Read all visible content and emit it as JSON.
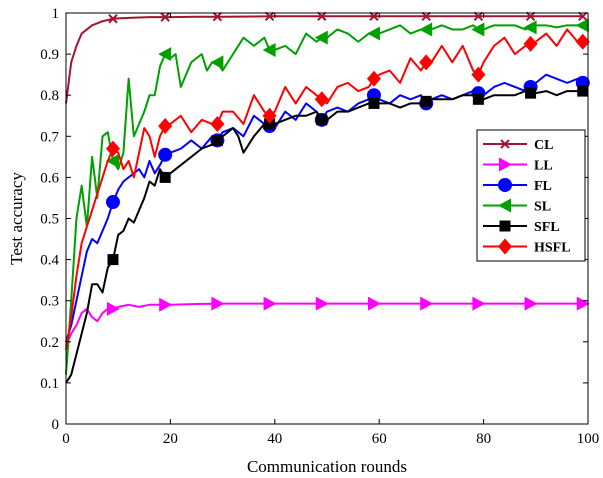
{
  "chart_data": {
    "type": "line",
    "xlabel": "Communication rounds",
    "ylabel": "Test accuracy",
    "xlim": [
      0,
      100
    ],
    "ylim": [
      0,
      1
    ],
    "xticks": [
      0,
      20,
      40,
      60,
      80,
      100
    ],
    "yticks": [
      0,
      0.1,
      0.2,
      0.3,
      0.4,
      0.5,
      0.6,
      0.7,
      0.8,
      0.9,
      1
    ],
    "grid": false,
    "legend_position": "right",
    "series": [
      {
        "name": "CL",
        "color": "#A2142F",
        "marker": "x",
        "marker_every": 10,
        "marker_offset": 9,
        "x": [
          0,
          1,
          2,
          3,
          4,
          5,
          6,
          7,
          8,
          9,
          10,
          12,
          14,
          16,
          18,
          20,
          25,
          30,
          40,
          50,
          60,
          70,
          80,
          90,
          99
        ],
        "y": [
          0.78,
          0.88,
          0.92,
          0.95,
          0.96,
          0.97,
          0.975,
          0.98,
          0.983,
          0.986,
          0.987,
          0.988,
          0.989,
          0.99,
          0.99,
          0.99,
          0.991,
          0.991,
          0.992,
          0.992,
          0.992,
          0.992,
          0.992,
          0.992,
          0.992
        ]
      },
      {
        "name": "LL",
        "color": "#FF00FF",
        "marker": "triangle-right",
        "marker_every": 10,
        "marker_offset": 9,
        "x": [
          0,
          1,
          2,
          3,
          4,
          5,
          6,
          7,
          8,
          9,
          10,
          12,
          14,
          16,
          18,
          20,
          25,
          30,
          40,
          50,
          60,
          70,
          80,
          90,
          99
        ],
        "y": [
          0.19,
          0.22,
          0.24,
          0.27,
          0.28,
          0.26,
          0.25,
          0.27,
          0.28,
          0.28,
          0.285,
          0.29,
          0.285,
          0.29,
          0.29,
          0.29,
          0.292,
          0.293,
          0.293,
          0.293,
          0.293,
          0.293,
          0.293,
          0.293,
          0.293
        ]
      },
      {
        "name": "FL",
        "color": "#0000FF",
        "marker": "circle",
        "marker_every": 10,
        "marker_offset": 9,
        "x": [
          0,
          1,
          2,
          3,
          4,
          5,
          6,
          7,
          8,
          9,
          10,
          11,
          12,
          13,
          14,
          15,
          16,
          17,
          18,
          19,
          20,
          22,
          24,
          26,
          28,
          29,
          30,
          32,
          34,
          36,
          38,
          39,
          40,
          42,
          44,
          46,
          48,
          49,
          50,
          52,
          54,
          56,
          58,
          59,
          60,
          62,
          64,
          66,
          68,
          69,
          70,
          72,
          74,
          76,
          78,
          79,
          80,
          82,
          84,
          86,
          88,
          89,
          90,
          92,
          94,
          96,
          98,
          99
        ],
        "y": [
          0.2,
          0.24,
          0.3,
          0.36,
          0.42,
          0.45,
          0.44,
          0.47,
          0.5,
          0.54,
          0.57,
          0.59,
          0.6,
          0.61,
          0.62,
          0.6,
          0.64,
          0.61,
          0.63,
          0.655,
          0.66,
          0.67,
          0.69,
          0.67,
          0.7,
          0.69,
          0.71,
          0.72,
          0.7,
          0.75,
          0.73,
          0.725,
          0.72,
          0.76,
          0.74,
          0.78,
          0.76,
          0.74,
          0.76,
          0.77,
          0.76,
          0.78,
          0.79,
          0.8,
          0.79,
          0.78,
          0.8,
          0.79,
          0.8,
          0.78,
          0.79,
          0.8,
          0.79,
          0.8,
          0.81,
          0.805,
          0.8,
          0.82,
          0.83,
          0.82,
          0.81,
          0.82,
          0.83,
          0.85,
          0.84,
          0.83,
          0.84,
          0.83
        ]
      },
      {
        "name": "SL",
        "color": "#00A000",
        "marker": "triangle-left",
        "marker_every": 10,
        "marker_offset": 9,
        "x": [
          0,
          1,
          2,
          3,
          4,
          5,
          6,
          7,
          8,
          9,
          10,
          11,
          12,
          13,
          14,
          15,
          16,
          17,
          18,
          19,
          20,
          21,
          22,
          23,
          24,
          25,
          26,
          27,
          28,
          29,
          30,
          32,
          34,
          36,
          38,
          39,
          40,
          42,
          44,
          46,
          48,
          49,
          50,
          52,
          54,
          56,
          58,
          59,
          60,
          62,
          64,
          66,
          68,
          69,
          70,
          72,
          74,
          76,
          78,
          79,
          80,
          82,
          84,
          86,
          88,
          89,
          90,
          92,
          94,
          96,
          98,
          99
        ],
        "y": [
          0.12,
          0.3,
          0.5,
          0.58,
          0.48,
          0.65,
          0.55,
          0.7,
          0.71,
          0.64,
          0.62,
          0.66,
          0.84,
          0.7,
          0.73,
          0.76,
          0.8,
          0.8,
          0.87,
          0.9,
          0.89,
          0.9,
          0.82,
          0.85,
          0.88,
          0.89,
          0.9,
          0.86,
          0.88,
          0.88,
          0.86,
          0.9,
          0.94,
          0.92,
          0.94,
          0.91,
          0.91,
          0.92,
          0.9,
          0.95,
          0.93,
          0.94,
          0.94,
          0.96,
          0.95,
          0.93,
          0.95,
          0.95,
          0.95,
          0.96,
          0.97,
          0.95,
          0.96,
          0.96,
          0.96,
          0.97,
          0.96,
          0.96,
          0.97,
          0.96,
          0.96,
          0.97,
          0.97,
          0.97,
          0.96,
          0.965,
          0.97,
          0.97,
          0.965,
          0.97,
          0.97,
          0.97
        ]
      },
      {
        "name": "SFL",
        "color": "#000000",
        "marker": "square",
        "marker_every": 10,
        "marker_offset": 9,
        "x": [
          0,
          1,
          2,
          3,
          4,
          5,
          6,
          7,
          8,
          9,
          10,
          11,
          12,
          13,
          14,
          15,
          16,
          17,
          18,
          19,
          20,
          22,
          24,
          26,
          28,
          29,
          30,
          32,
          33,
          34,
          36,
          38,
          39,
          40,
          42,
          44,
          46,
          48,
          49,
          50,
          52,
          54,
          56,
          58,
          59,
          60,
          62,
          64,
          66,
          68,
          69,
          70,
          72,
          74,
          76,
          78,
          79,
          80,
          82,
          84,
          86,
          88,
          89,
          90,
          92,
          94,
          96,
          98,
          99
        ],
        "y": [
          0.1,
          0.12,
          0.17,
          0.22,
          0.27,
          0.34,
          0.34,
          0.32,
          0.38,
          0.4,
          0.46,
          0.47,
          0.5,
          0.49,
          0.52,
          0.55,
          0.59,
          0.58,
          0.62,
          0.6,
          0.61,
          0.63,
          0.65,
          0.67,
          0.68,
          0.69,
          0.7,
          0.72,
          0.7,
          0.66,
          0.7,
          0.73,
          0.73,
          0.73,
          0.74,
          0.75,
          0.75,
          0.76,
          0.74,
          0.74,
          0.76,
          0.76,
          0.77,
          0.78,
          0.78,
          0.78,
          0.78,
          0.77,
          0.78,
          0.78,
          0.785,
          0.79,
          0.79,
          0.79,
          0.8,
          0.8,
          0.79,
          0.79,
          0.8,
          0.8,
          0.8,
          0.81,
          0.805,
          0.805,
          0.81,
          0.8,
          0.81,
          0.81,
          0.81
        ]
      },
      {
        "name": "HSFL",
        "color": "#FF0000",
        "marker": "diamond",
        "marker_every": 10,
        "marker_offset": 9,
        "x": [
          0,
          1,
          2,
          3,
          4,
          5,
          6,
          7,
          8,
          9,
          10,
          11,
          12,
          13,
          14,
          15,
          16,
          17,
          18,
          19,
          20,
          22,
          24,
          26,
          28,
          29,
          30,
          32,
          34,
          36,
          38,
          39,
          40,
          42,
          44,
          46,
          48,
          49,
          50,
          52,
          54,
          56,
          58,
          59,
          60,
          62,
          64,
          66,
          68,
          69,
          70,
          72,
          74,
          76,
          78,
          79,
          80,
          82,
          84,
          86,
          88,
          89,
          90,
          92,
          94,
          96,
          98,
          99
        ],
        "y": [
          0.18,
          0.26,
          0.36,
          0.44,
          0.48,
          0.52,
          0.56,
          0.6,
          0.64,
          0.67,
          0.66,
          0.62,
          0.64,
          0.6,
          0.66,
          0.72,
          0.7,
          0.65,
          0.7,
          0.725,
          0.73,
          0.75,
          0.71,
          0.74,
          0.73,
          0.73,
          0.76,
          0.76,
          0.73,
          0.8,
          0.76,
          0.75,
          0.76,
          0.82,
          0.78,
          0.82,
          0.8,
          0.79,
          0.78,
          0.82,
          0.83,
          0.81,
          0.82,
          0.84,
          0.85,
          0.86,
          0.83,
          0.89,
          0.86,
          0.88,
          0.88,
          0.92,
          0.88,
          0.92,
          0.86,
          0.85,
          0.88,
          0.92,
          0.94,
          0.9,
          0.92,
          0.925,
          0.93,
          0.95,
          0.92,
          0.96,
          0.93,
          0.93
        ]
      }
    ]
  }
}
